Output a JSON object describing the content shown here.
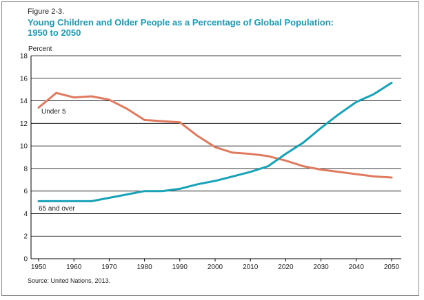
{
  "figure_label": "Figure 2-3.",
  "title_line1": "Young Children and Older People as a Percentage of Global Population:",
  "title_line2": "1950 to 2050",
  "source": "Source: United Nations, 2013.",
  "colors": {
    "under5": "#e07a5f",
    "over65": "#17a2b8",
    "title": "#1a9cb8"
  },
  "chart_data": {
    "type": "line",
    "ylabel": "Percent",
    "xlabel": "",
    "ylim": [
      0,
      18
    ],
    "yticks": [
      0,
      2,
      4,
      6,
      8,
      10,
      12,
      14,
      16,
      18
    ],
    "xlim": [
      1950,
      2050
    ],
    "xticks": [
      1950,
      1960,
      1970,
      1980,
      1990,
      2000,
      2010,
      2020,
      2030,
      2040,
      2050
    ],
    "grid": "horizontal",
    "x": [
      1950,
      1955,
      1960,
      1965,
      1970,
      1975,
      1980,
      1985,
      1990,
      1995,
      2000,
      2005,
      2010,
      2015,
      2020,
      2025,
      2030,
      2035,
      2040,
      2045,
      2050
    ],
    "series": [
      {
        "name": "Under 5",
        "key": "under5",
        "values": [
          13.4,
          14.7,
          14.3,
          14.4,
          14.1,
          13.3,
          12.3,
          12.2,
          12.1,
          10.9,
          9.9,
          9.4,
          9.3,
          9.1,
          8.7,
          8.2,
          7.9,
          7.7,
          7.5,
          7.3,
          7.2
        ]
      },
      {
        "name": "65 and over",
        "key": "over65",
        "values": [
          5.1,
          5.1,
          5.1,
          5.1,
          5.4,
          5.7,
          6.0,
          6.0,
          6.2,
          6.6,
          6.9,
          7.3,
          7.7,
          8.2,
          9.3,
          10.3,
          11.6,
          12.8,
          13.9,
          14.6,
          15.6
        ]
      }
    ]
  }
}
